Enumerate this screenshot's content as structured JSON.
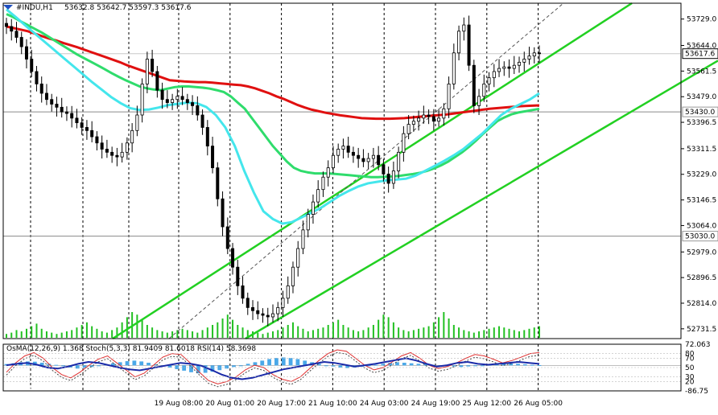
{
  "header": {
    "symbol": "#INDU,H1",
    "ohlc": "53632.8  53642.7  53597.3  53617.6"
  },
  "indicator_header": "OsMA(12,26,9) 1.368  Stoch(5,3,3) 81.9409 81.6018  RSI(14) 58.3698",
  "chart_data": [
    {
      "type": "candlestick",
      "title": "#INDU,H1",
      "ylim": [
        52700,
        53780
      ],
      "price_ticks": [
        "53729.0",
        "53644.0",
        "53561.5",
        "53479.0",
        "53396.5",
        "53311.5",
        "53229.0",
        "53146.5",
        "53064.0",
        "52979.0",
        "52896.5",
        "52814.0",
        "52731.5"
      ],
      "price_tick_values": [
        53729.0,
        53644.0,
        53561.5,
        53479.0,
        53396.5,
        53311.5,
        53229.0,
        53146.5,
        53064.0,
        52979.0,
        52896.5,
        52814.0,
        52731.5
      ],
      "current_price": "53617.6",
      "horizontal_levels": [
        "53430.0",
        "53030.0"
      ],
      "horizontal_level_values": [
        53430.0,
        53030.0
      ],
      "time_labels": [
        "19 Aug 08:00",
        "20 Aug 01:00",
        "20 Aug 17:00",
        "21 Aug 10:00",
        "24 Aug 03:00",
        "24 Aug 19:00",
        "25 Aug 12:00",
        "26 Aug 05:00"
      ],
      "close_series": [
        53705,
        53690,
        53670,
        53640,
        53600,
        53560,
        53520,
        53490,
        53470,
        53455,
        53445,
        53430,
        53425,
        53410,
        53395,
        53380,
        53370,
        53350,
        53330,
        53310,
        53300,
        53290,
        53285,
        53300,
        53330,
        53370,
        53420,
        53520,
        53600,
        53560,
        53500,
        53470,
        53460,
        53470,
        53480,
        53470,
        53460,
        53450,
        53420,
        53380,
        53320,
        53250,
        53150,
        53060,
        52990,
        52930,
        52870,
        52830,
        52800,
        52790,
        52780,
        52775,
        52770,
        52780,
        52800,
        52830,
        52870,
        52930,
        52990,
        53050,
        53100,
        53140,
        53180,
        53220,
        53250,
        53290,
        53310,
        53320,
        53300,
        53290,
        53280,
        53270,
        53280,
        53290,
        53260,
        53230,
        53200,
        53240,
        53300,
        53360,
        53390,
        53400,
        53410,
        53420,
        53415,
        53400,
        53410,
        53440,
        53520,
        53620,
        53690,
        53710,
        53580,
        53450,
        53480,
        53520,
        53540,
        53560,
        53570,
        53575,
        53570,
        53580,
        53590,
        53600,
        53610,
        53620,
        53617.6
      ],
      "series": [
        {
          "name": "MA red",
          "color": "#e01010",
          "values": [
            53705,
            53700,
            53695,
            53690,
            53682,
            53674,
            53666,
            53660,
            53652,
            53645,
            53638,
            53630,
            53622,
            53614,
            53606,
            53598,
            53590,
            53580,
            53572,
            53564,
            53556,
            53548,
            53540,
            53532,
            53530,
            53528,
            53527,
            53526,
            53526,
            53524,
            53522,
            53520,
            53518,
            53516,
            53512,
            53506,
            53498,
            53490,
            53480,
            53472,
            53462,
            53452,
            53444,
            53437,
            53432,
            53427,
            53423,
            53419,
            53416,
            53413,
            53410,
            53409,
            53408,
            53408,
            53408,
            53409,
            53410,
            53412,
            53414,
            53416,
            53418,
            53420,
            53422,
            53425,
            53428,
            53431,
            53434,
            53437,
            53440,
            53442,
            53444,
            53446,
            53448,
            53449,
            53450,
            53451
          ]
        },
        {
          "name": "MA green",
          "color": "#2fdc6c",
          "values": [
            53745,
            53735,
            53722,
            53710,
            53698,
            53686,
            53672,
            53658,
            53644,
            53630,
            53616,
            53604,
            53592,
            53580,
            53568,
            53555,
            53543,
            53532,
            53522,
            53512,
            53506,
            53502,
            53500,
            53505,
            53510,
            53512,
            53512,
            53510,
            53508,
            53505,
            53500,
            53494,
            53480,
            53460,
            53440,
            53410,
            53380,
            53350,
            53320,
            53295,
            53270,
            53250,
            53240,
            53235,
            53232,
            53232,
            53232,
            53230,
            53228,
            53226,
            53224,
            53222,
            53220,
            53220,
            53221,
            53222,
            53224,
            53227,
            53230,
            53234,
            53240,
            53248,
            53258,
            53270,
            53285,
            53300,
            53318,
            53338,
            53360,
            53380,
            53400,
            53412,
            53422,
            53428,
            53432,
            53436,
            53440
          ]
        },
        {
          "name": "MA cyan",
          "color": "#44e6ec",
          "values": [
            53760,
            53735,
            53708,
            53682,
            53656,
            53630,
            53604,
            53578,
            53552,
            53526,
            53502,
            53478,
            53458,
            53442,
            53436,
            53438,
            53444,
            53452,
            53456,
            53460,
            53458,
            53446,
            53420,
            53380,
            53320,
            53240,
            53170,
            53110,
            53085,
            53070,
            53075,
            53090,
            53105,
            53120,
            53140,
            53160,
            53176,
            53190,
            53200,
            53205,
            53210,
            53212,
            53215,
            53225,
            53240,
            53256,
            53272,
            53290,
            53310,
            53335,
            53360,
            53390,
            53420,
            53440,
            53455,
            53470,
            53490
          ]
        }
      ],
      "channel": {
        "upper": [
          [
            "20 Aug 01:00",
            52760
          ],
          [
            "26 Aug 05:00",
            53780
          ]
        ],
        "lower": [
          [
            "20 Aug 17:00",
            52760
          ],
          [
            "26 Aug 05:00",
            53500
          ]
        ]
      },
      "volume": [
        3,
        4,
        6,
        5,
        7,
        9,
        11,
        7,
        5,
        4,
        3,
        4,
        5,
        6,
        8,
        10,
        12,
        9,
        7,
        5,
        4,
        6,
        8,
        12,
        16,
        20,
        18,
        14,
        10,
        8,
        6,
        5,
        4,
        5,
        6,
        7,
        6,
        5,
        4,
        6,
        8,
        10,
        12,
        15,
        18,
        14,
        10,
        8,
        6,
        5,
        4,
        3,
        4,
        5,
        6,
        8,
        10,
        12,
        9,
        7,
        5,
        6,
        7,
        8,
        10,
        12,
        14,
        10,
        8,
        6,
        5,
        6,
        8,
        10,
        14,
        18,
        16,
        12,
        8,
        6,
        5,
        6,
        7,
        8,
        9,
        12,
        16,
        20,
        15,
        10,
        8,
        6,
        5,
        4,
        5,
        6,
        7,
        8,
        9,
        8,
        7,
        6,
        5,
        6,
        7,
        8,
        9
      ]
    },
    {
      "type": "bar",
      "title": "OsMA(12,26,9) / Stoch(5,3,3) / RSI(14)",
      "ylim": [
        -86.75,
        72.063
      ],
      "ticks": [
        "72.063",
        "80",
        "70",
        "50",
        "30",
        "20",
        "-86.75"
      ],
      "osma": [
        5,
        8,
        12,
        15,
        14,
        10,
        6,
        2,
        -3,
        -8,
        -12,
        -10,
        -6,
        -2,
        3,
        8,
        12,
        16,
        18,
        15,
        10,
        4,
        -2,
        -8,
        -14,
        -20,
        -26,
        -30,
        -28,
        -24,
        -18,
        -12,
        -6,
        0,
        6,
        12,
        18,
        24,
        28,
        30,
        28,
        24,
        18,
        12,
        6,
        0,
        -4,
        -8,
        -10,
        -8,
        -5,
        -2,
        2,
        6,
        10,
        12,
        10,
        8,
        6,
        4,
        2,
        0,
        -2,
        -4,
        -6,
        -4,
        -2,
        0,
        2,
        4,
        6,
        8,
        6,
        4,
        2,
        1
      ],
      "stoch_main": [
        40,
        60,
        75,
        82,
        70,
        50,
        35,
        28,
        40,
        55,
        68,
        75,
        60,
        45,
        30,
        38,
        55,
        72,
        80,
        78,
        60,
        40,
        22,
        15,
        20,
        30,
        45,
        55,
        50,
        35,
        25,
        20,
        30,
        48,
        65,
        80,
        88,
        85,
        70,
        55,
        45,
        50,
        62,
        75,
        82,
        70,
        55,
        48,
        52,
        60,
        70,
        78,
        75,
        68,
        60,
        65,
        72,
        80,
        82
      ],
      "rsi": [
        55,
        58,
        60,
        56,
        50,
        48,
        52,
        58,
        62,
        60,
        55,
        50,
        46,
        44,
        48,
        52,
        56,
        60,
        58,
        54,
        45,
        35,
        28,
        25,
        28,
        34,
        40,
        46,
        50,
        54,
        58,
        62,
        60,
        56,
        52,
        55,
        58,
        62,
        66,
        70,
        65,
        58,
        52,
        55,
        60,
        62,
        58,
        56,
        58,
        60,
        62,
        60,
        58
      ]
    }
  ]
}
